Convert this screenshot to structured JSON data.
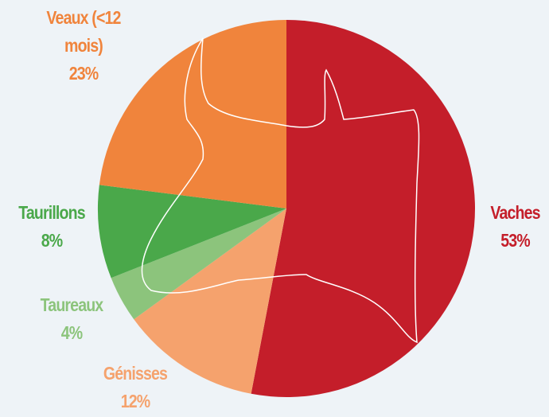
{
  "chart_data": {
    "type": "pie",
    "categories": [
      "Vaches",
      "Génisses",
      "Taureaux",
      "Taurillons",
      "Veaux (<12 mois)"
    ],
    "values": [
      53,
      12,
      4,
      8,
      23
    ],
    "value_labels": [
      "53%",
      "12%",
      "4%",
      "8%",
      "23%"
    ],
    "colors": [
      "#c41e2a",
      "#f5a26d",
      "#8cc47c",
      "#4aa84a",
      "#f0843c"
    ]
  }
}
